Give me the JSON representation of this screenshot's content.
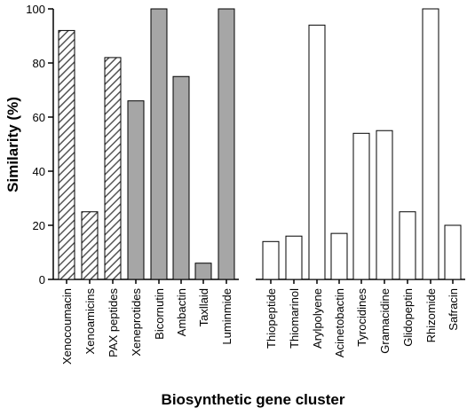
{
  "chart_data": {
    "type": "bar",
    "xlabel": "Biosynthetic gene cluster",
    "ylabel": "Similarity (%)",
    "ylim": [
      0,
      100
    ],
    "yticks": [
      0,
      20,
      40,
      60,
      80,
      100
    ],
    "grid": false,
    "legend": "none",
    "colors": {
      "hatched_stroke": "#555555",
      "gray_fill": "#a6a6a6",
      "white_fill": "#ffffff",
      "outline": "#000000"
    },
    "categories": [
      "Xenocoumacin",
      "Xenoamicins",
      "PAX peptides",
      "Xeneprotides",
      "Bicornutin",
      "Ambactin",
      "Taxllaid",
      "Luminmide",
      "Thiopeptide",
      "Thiomarinol",
      "Arylpolyene",
      "Acinetobactin",
      "Tyrocidines",
      "Gramacidine",
      "Glidopeptin",
      "Rhizomide",
      "Safracin"
    ],
    "values": [
      92,
      25,
      82,
      66,
      100,
      75,
      6,
      100,
      14,
      16,
      94,
      17,
      54,
      55,
      25,
      100,
      20
    ],
    "styles": [
      "hatched",
      "hatched",
      "hatched",
      "gray",
      "gray",
      "gray",
      "gray",
      "gray",
      "white",
      "white",
      "white",
      "white",
      "white",
      "white",
      "white",
      "white",
      "white"
    ],
    "groups": [
      {
        "start": 0,
        "end": 7
      },
      {
        "start": 8,
        "end": 16
      }
    ]
  }
}
